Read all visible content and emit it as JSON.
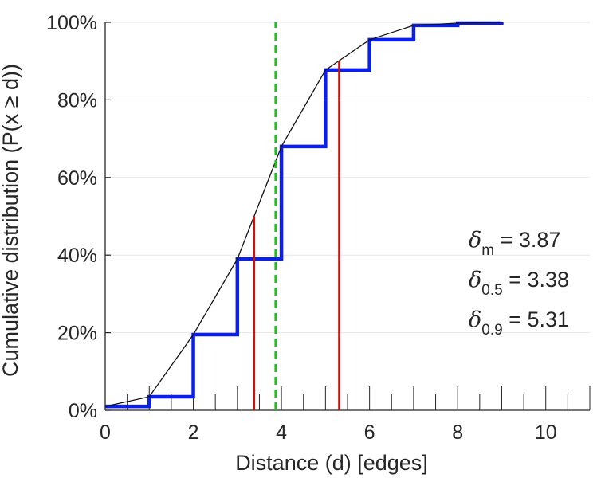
{
  "chart_data": {
    "type": "line",
    "xlabel": "Distance (d) [edges]",
    "ylabel": "Cumulative distribution (P(x ≥ d))",
    "xlim": [
      0,
      11
    ],
    "ylim": [
      0,
      100
    ],
    "x_ticks": [
      0,
      2,
      4,
      6,
      8,
      10
    ],
    "x_minor_ticks": [
      0.5,
      1,
      1.5,
      2,
      2.5,
      3,
      3.5,
      4,
      4.5,
      5,
      5.5,
      6,
      6.5,
      7,
      7.5,
      8,
      8.5,
      9,
      9.5,
      10,
      10.5,
      11
    ],
    "y_ticks": [
      0,
      20,
      40,
      60,
      80,
      100
    ],
    "x_tick_labels": [
      "0",
      "2",
      "4",
      "6",
      "8",
      "10"
    ],
    "y_tick_labels": [
      "0%",
      "20%",
      "40%",
      "60%",
      "80%",
      "100%"
    ],
    "grid": "horizontal",
    "series": [
      {
        "name": "empirical-cdf",
        "style": "step",
        "color": "#0a1fe8",
        "x": [
          0,
          1,
          2,
          3,
          4,
          5,
          6,
          7,
          8,
          9
        ],
        "y": [
          1,
          3.5,
          19.5,
          39,
          68,
          87.7,
          95.5,
          99.2,
          99.8,
          100
        ]
      },
      {
        "name": "interpolated-cdf",
        "style": "line",
        "color": "#111111",
        "x": [
          0,
          1,
          2,
          3,
          4,
          5,
          6,
          7,
          8,
          9
        ],
        "y": [
          1,
          3.5,
          19.5,
          39,
          68,
          87.7,
          95.5,
          99.2,
          99.8,
          100
        ]
      }
    ],
    "markers": [
      {
        "name": "delta-0.5",
        "x": 3.38,
        "y_top": 50,
        "color": "#cc1111",
        "style": "solid"
      },
      {
        "name": "delta-0.9",
        "x": 5.31,
        "y_top": 90,
        "color": "#cc1111",
        "style": "solid"
      },
      {
        "name": "delta-m",
        "x": 3.87,
        "y_top": 100,
        "color": "#22bb22",
        "style": "dashed"
      }
    ],
    "annotations": [
      {
        "symbol": "δ",
        "sub": "m",
        "text": " = 3.87"
      },
      {
        "symbol": "δ",
        "sub": "0.5",
        "text": " = 3.38"
      },
      {
        "symbol": "δ",
        "sub": "0.9",
        "text": " = 5.31"
      }
    ]
  }
}
